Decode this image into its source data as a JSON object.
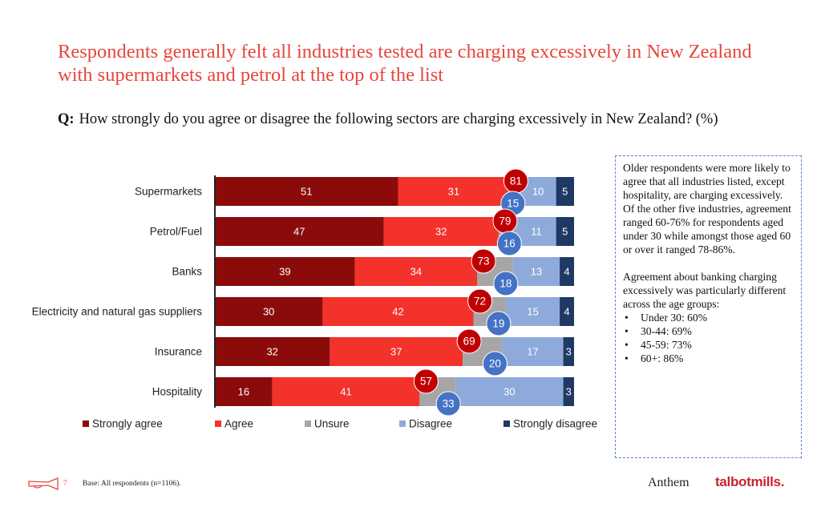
{
  "title": "Respondents generally felt all industries tested are charging excessively  in New Zealand with supermarkets and petrol at the top of the list",
  "question": {
    "prefix": "Q:",
    "text": "How strongly do you agree or disagree the following sectors are charging excessively in New Zealand? (%)"
  },
  "chart_data": {
    "type": "bar",
    "orientation": "horizontal",
    "stacked": true,
    "categories": [
      "Supermarkets",
      "Petrol/Fuel",
      "Banks",
      "Electricity and natural gas suppliers",
      "Insurance",
      "Hospitality"
    ],
    "series": [
      {
        "name": "Strongly agree",
        "color": "#8b0b0b",
        "values": [
          51,
          47,
          39,
          30,
          32,
          16
        ]
      },
      {
        "name": "Agree",
        "color": "#f2322b",
        "values": [
          31,
          32,
          34,
          42,
          37,
          41
        ]
      },
      {
        "name": "Unsure",
        "color": "#a6a6a6",
        "values": [
          3,
          5,
          10,
          9,
          11,
          10
        ]
      },
      {
        "name": "Disagree",
        "color": "#8eaadb",
        "values": [
          10,
          11,
          13,
          15,
          17,
          30
        ]
      },
      {
        "name": "Strongly disagree",
        "color": "#1f3864",
        "values": [
          5,
          5,
          4,
          4,
          3,
          3
        ]
      }
    ],
    "data_labels": {
      "Strongly agree": [
        "51",
        "47",
        "39",
        "30",
        "32",
        "16"
      ],
      "Agree": [
        "31",
        "32",
        "34",
        "42",
        "37",
        "41"
      ],
      "Unsure": [
        "",
        "",
        "",
        "",
        "",
        ""
      ],
      "Disagree": [
        "10",
        "11",
        "13",
        "15",
        "17",
        "30"
      ],
      "Strongly disagree": [
        "5",
        "5",
        "4",
        "4",
        "3",
        "3"
      ]
    },
    "total_agree": {
      "color": "#c00000",
      "values": [
        81,
        79,
        73,
        72,
        69,
        57
      ]
    },
    "total_disagree": {
      "color": "#4472c4",
      "values": [
        15,
        16,
        18,
        19,
        20,
        33
      ]
    },
    "xlim": [
      0,
      100
    ],
    "legend_position": "bottom",
    "grid": false
  },
  "note": {
    "paragraph1": "Older respondents were more likely to agree that all industries listed, except hospitality, are charging excessively. Of the other five industries, agreement ranged 60-76%  for respondents aged under 30 while amongst those aged 60 or over it ranged 78-86%.",
    "paragraph2": "Agreement about banking charging excessively was particularly different across the age groups:",
    "bullets": [
      "Under 30: 60%",
      "30-44: 69%",
      "45-59: 73%",
      "60+: 86%"
    ],
    "border_color": "#5b87c7"
  },
  "footer": {
    "page_number": "7",
    "base": "Base: All respondents (n=1106).",
    "logo_anthem": "Anthem",
    "logo_talbotmills": "talbotmills",
    "logo_dot": "."
  }
}
